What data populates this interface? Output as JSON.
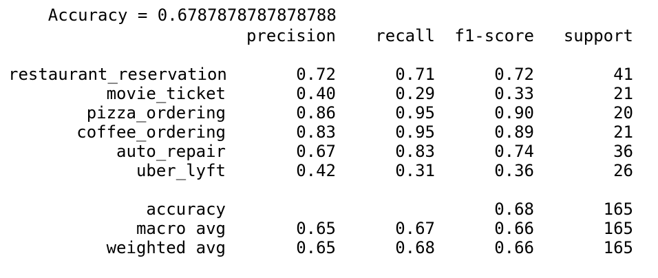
{
  "accuracy_line": "Accuracy = 0.6787878787878788",
  "header": {
    "precision": "precision",
    "recall": "recall",
    "f1": "f1-score",
    "support": "support"
  },
  "rows": [
    {
      "label": "restaurant_reservation",
      "precision": "0.72",
      "recall": "0.71",
      "f1": "0.72",
      "support": "41"
    },
    {
      "label": "movie_ticket",
      "precision": "0.40",
      "recall": "0.29",
      "f1": "0.33",
      "support": "21"
    },
    {
      "label": "pizza_ordering",
      "precision": "0.86",
      "recall": "0.95",
      "f1": "0.90",
      "support": "20"
    },
    {
      "label": "coffee_ordering",
      "precision": "0.83",
      "recall": "0.95",
      "f1": "0.89",
      "support": "21"
    },
    {
      "label": "auto_repair",
      "precision": "0.67",
      "recall": "0.83",
      "f1": "0.74",
      "support": "36"
    },
    {
      "label": "uber_lyft",
      "precision": "0.42",
      "recall": "0.31",
      "f1": "0.36",
      "support": "26"
    }
  ],
  "summary": [
    {
      "label": "accuracy",
      "precision": "",
      "recall": "",
      "f1": "0.68",
      "support": "165"
    },
    {
      "label": "macro avg",
      "precision": "0.65",
      "recall": "0.67",
      "f1": "0.66",
      "support": "165"
    },
    {
      "label": "weighted avg",
      "precision": "0.65",
      "recall": "0.68",
      "f1": "0.66",
      "support": "165"
    }
  ]
}
